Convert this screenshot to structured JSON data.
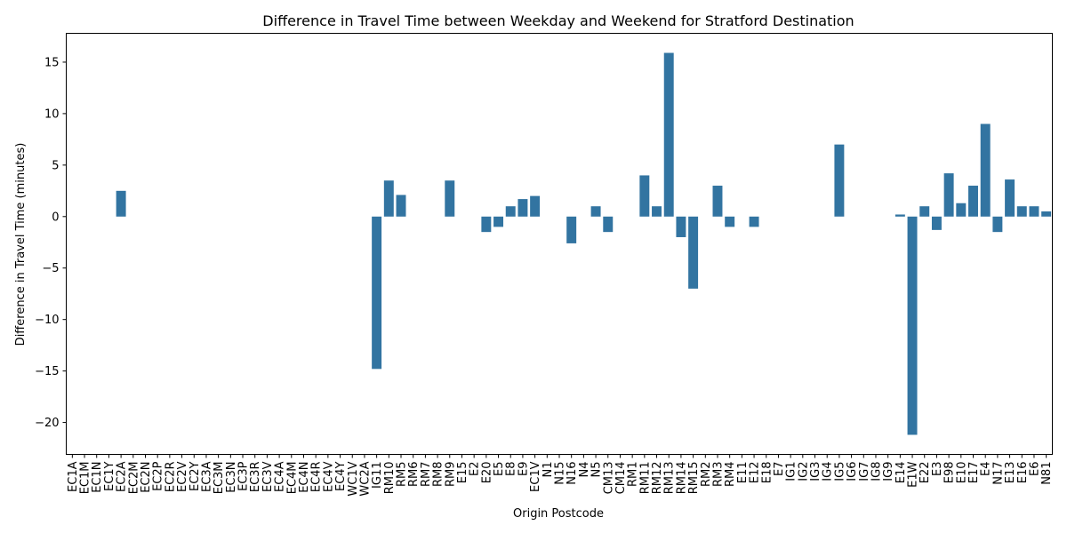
{
  "chart_data": {
    "type": "bar",
    "title": "Difference in Travel Time between Weekday and Weekend for Stratford Destination",
    "xlabel": "Origin Postcode",
    "ylabel": "Difference in Travel Time (minutes)",
    "ylim": [
      -23.1,
      17.8
    ],
    "yticks": [
      -20,
      -15,
      -10,
      -5,
      0,
      5,
      10,
      15
    ],
    "yticklabels": [
      "−20",
      "−15",
      "−10",
      "−5",
      "0",
      "5",
      "10",
      "15"
    ],
    "grid": false,
    "bar_color": "#3274a1",
    "categories": [
      "EC1A",
      "EC1M",
      "EC1N",
      "EC1Y",
      "EC2A",
      "EC2M",
      "EC2N",
      "EC2P",
      "EC2R",
      "EC2V",
      "EC2Y",
      "EC3A",
      "EC3M",
      "EC3N",
      "EC3P",
      "EC3R",
      "EC3V",
      "EC4A",
      "EC4M",
      "EC4N",
      "EC4R",
      "EC4V",
      "EC4Y",
      "WC1V",
      "WC2A",
      "IG11",
      "RM10",
      "RM5",
      "RM6",
      "RM7",
      "RM8",
      "RM9",
      "E15",
      "E2",
      "E20",
      "E5",
      "E8",
      "E9",
      "EC1V",
      "N1",
      "N15",
      "N16",
      "N4",
      "N5",
      "CM13",
      "CM14",
      "RM1",
      "RM11",
      "RM12",
      "RM13",
      "RM14",
      "RM15",
      "RM2",
      "RM3",
      "RM4",
      "E11",
      "E12",
      "E18",
      "E7",
      "IG1",
      "IG2",
      "IG3",
      "IG4",
      "IG5",
      "IG6",
      "IG7",
      "IG8",
      "IG9",
      "E14",
      "E1W",
      "E22",
      "E3",
      "E98",
      "E10",
      "E17",
      "E4",
      "N17",
      "E13",
      "E16",
      "E6",
      "N81"
    ],
    "values": [
      0,
      0,
      0,
      0,
      2.5,
      0,
      0,
      0,
      0,
      0,
      0,
      0,
      0,
      0,
      0,
      0,
      0,
      0,
      0,
      0,
      0,
      0,
      0,
      0,
      0,
      -14.8,
      3.5,
      2.1,
      0,
      0,
      0,
      3.5,
      0,
      0,
      -1.5,
      -1.0,
      1.0,
      1.7,
      2.0,
      0,
      0,
      -2.6,
      0,
      1.0,
      -1.5,
      0,
      0,
      4.0,
      1.0,
      15.9,
      -2.0,
      -7.0,
      0,
      3.0,
      -1.0,
      0,
      -1.0,
      0,
      0,
      0,
      0,
      0,
      0,
      7.0,
      0,
      0,
      0,
      0,
      0.2,
      -21.2,
      1.0,
      -1.3,
      4.2,
      1.3,
      3.0,
      9.0,
      -1.5,
      3.6,
      1.0,
      1.0,
      0.5
    ]
  }
}
